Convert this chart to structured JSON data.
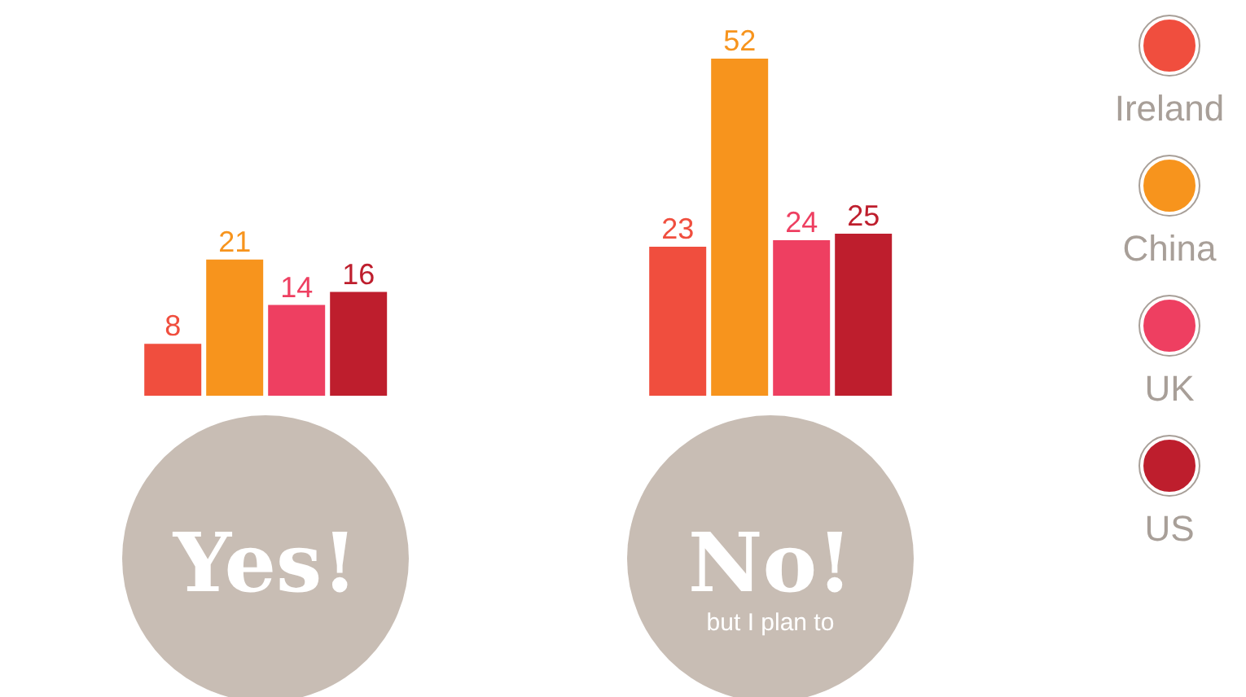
{
  "chart_data": {
    "type": "bar",
    "categories": [
      "Yes!",
      "No!\nbut I plan to"
    ],
    "series": [
      {
        "name": "Ireland",
        "color": "#f04e3e",
        "values": [
          8,
          23
        ]
      },
      {
        "name": "China",
        "color": "#f7941d",
        "values": [
          21,
          52
        ]
      },
      {
        "name": "UK",
        "color": "#ee3f61",
        "values": [
          14,
          24
        ]
      },
      {
        "name": "US",
        "color": "#be1e2d",
        "values": [
          16,
          25
        ]
      }
    ],
    "data_labels": true,
    "legend": "right"
  }
}
